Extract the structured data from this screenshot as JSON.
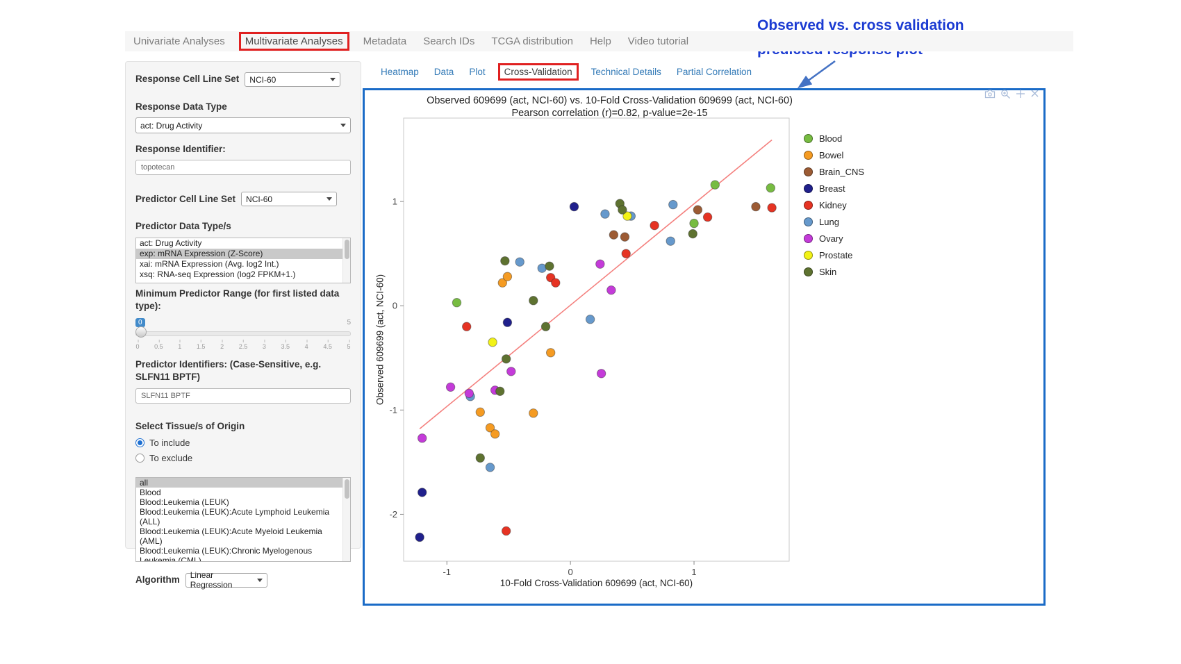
{
  "annotation": {
    "line1": "Observed vs. cross validation",
    "line2": "predicted response plot"
  },
  "nav": {
    "tabs": [
      {
        "label": "Univariate Analyses"
      },
      {
        "label": "Multivariate Analyses",
        "active": true,
        "boxed": true
      },
      {
        "label": "Metadata"
      },
      {
        "label": "Search IDs"
      },
      {
        "label": "TCGA distribution"
      },
      {
        "label": "Help"
      },
      {
        "label": "Video tutorial"
      }
    ]
  },
  "subtabs": [
    {
      "label": "Heatmap"
    },
    {
      "label": "Data"
    },
    {
      "label": "Plot"
    },
    {
      "label": "Cross-Validation",
      "active": true,
      "boxed": true
    },
    {
      "label": "Technical Details"
    },
    {
      "label": "Partial Correlation"
    }
  ],
  "sidebar": {
    "response_cell_line_set": {
      "label": "Response Cell Line Set",
      "value": "NCI-60"
    },
    "response_data_type": {
      "label": "Response Data Type",
      "value": "act: Drug Activity"
    },
    "response_identifier": {
      "label": "Response Identifier:",
      "value": "topotecan"
    },
    "predictor_cell_line_set": {
      "label": "Predictor Cell Line Set",
      "value": "NCI-60"
    },
    "predictor_data_types": {
      "label": "Predictor Data Type/s",
      "options": [
        "act: Drug Activity",
        "exp: mRNA Expression (Z-Score)",
        "xai: mRNA Expression (Avg. log2 Int.)",
        "xsq: RNA-seq Expression (log2 FPKM+1.)"
      ],
      "selected_index": 1
    },
    "min_predictor_range": {
      "label": "Minimum Predictor Range (for first listed data type):",
      "value": "0",
      "max_label": "5",
      "ticks": [
        "0",
        "0.5",
        "1",
        "1.5",
        "2",
        "2.5",
        "3",
        "3.5",
        "4",
        "4.5",
        "5"
      ]
    },
    "predictor_identifiers": {
      "label": "Predictor Identifiers: (Case-Sensitive, e.g. SLFN11 BPTF)",
      "value": "SLFN11 BPTF"
    },
    "tissue_origin": {
      "label": "Select Tissue/s of Origin",
      "radio_include": "To include",
      "radio_exclude": "To exclude",
      "selected": "include",
      "options": [
        "all",
        "Blood",
        "Blood:Leukemia (LEUK)",
        "Blood:Leukemia (LEUK):Acute Lymphoid Leukemia (ALL)",
        "Blood:Leukemia (LEUK):Acute Myeloid Leukemia (AML)",
        "Blood:Leukemia (LEUK):Chronic Myelogenous Leukemia (CML)"
      ],
      "selected_option": "all"
    },
    "algorithm": {
      "label": "Algorithm",
      "value": "Linear Regression"
    }
  },
  "colors": {
    "panel_border_blue": "#1A6BC7",
    "highlight_red": "#E02020",
    "link_blue": "#337AB7",
    "annotation_blue": "#1B3BD2",
    "arrow_blue": "#4472C4"
  },
  "chart_data": {
    "type": "scatter",
    "title": "Observed 609699 (act, NCI-60) vs. 10-Fold Cross-Validation 609699 (act, NCI-60)",
    "subtitle": "Pearson correlation (r)=0.82, p-value=2e-15",
    "xlabel": "10-Fold Cross-Validation 609699 (act, NCI-60)",
    "ylabel": "Observed 609699 (act, NCI-60)",
    "xlim": [
      -1.35,
      1.77
    ],
    "ylim": [
      -2.45,
      1.8
    ],
    "xticks": [
      -1,
      0,
      1
    ],
    "yticks": [
      -2,
      -1,
      0,
      1
    ],
    "grid": false,
    "legend_position": "right",
    "regression_line": {
      "x1": -1.22,
      "y1": -1.18,
      "x2": 1.63,
      "y2": 1.59,
      "color": "#F4807E"
    },
    "series": [
      {
        "name": "Blood",
        "color": "#77BC41",
        "points": [
          [
            -0.92,
            0.03
          ],
          [
            1.0,
            0.79
          ],
          [
            1.17,
            1.16
          ],
          [
            1.62,
            1.13
          ]
        ]
      },
      {
        "name": "Bowel",
        "color": "#F59B22",
        "points": [
          [
            -0.55,
            0.22
          ],
          [
            -0.51,
            0.28
          ],
          [
            -0.16,
            -0.45
          ],
          [
            -0.73,
            -1.02
          ],
          [
            -0.3,
            -1.03
          ],
          [
            -0.65,
            -1.17
          ],
          [
            -0.61,
            -1.23
          ]
        ]
      },
      {
        "name": "Brain_CNS",
        "color": "#9C5B34",
        "points": [
          [
            0.35,
            0.68
          ],
          [
            0.44,
            0.66
          ],
          [
            1.03,
            0.92
          ],
          [
            1.5,
            0.95
          ]
        ]
      },
      {
        "name": "Breast",
        "color": "#20208C",
        "points": [
          [
            0.03,
            0.95
          ],
          [
            -0.51,
            -0.16
          ],
          [
            -1.2,
            -1.79
          ],
          [
            -1.22,
            -2.22
          ]
        ]
      },
      {
        "name": "Kidney",
        "color": "#E63323",
        "points": [
          [
            -0.84,
            -0.2
          ],
          [
            -0.16,
            0.27
          ],
          [
            -0.12,
            0.22
          ],
          [
            0.45,
            0.5
          ],
          [
            0.68,
            0.77
          ],
          [
            1.11,
            0.85
          ],
          [
            1.63,
            0.94
          ],
          [
            -0.52,
            -2.16
          ]
        ]
      },
      {
        "name": "Lung",
        "color": "#6699CC",
        "points": [
          [
            -0.41,
            0.42
          ],
          [
            -0.23,
            0.36
          ],
          [
            0.28,
            0.88
          ],
          [
            0.49,
            0.86
          ],
          [
            0.83,
            0.97
          ],
          [
            0.81,
            0.62
          ],
          [
            0.16,
            -0.13
          ],
          [
            -0.81,
            -0.87
          ],
          [
            -0.65,
            -1.55
          ]
        ]
      },
      {
        "name": "Ovary",
        "color": "#C43BD9",
        "points": [
          [
            -0.97,
            -0.78
          ],
          [
            -0.82,
            -0.84
          ],
          [
            -0.61,
            -0.81
          ],
          [
            -0.48,
            -0.63
          ],
          [
            0.25,
            -0.65
          ],
          [
            0.24,
            0.4
          ],
          [
            0.33,
            0.15
          ],
          [
            -1.2,
            -1.27
          ]
        ]
      },
      {
        "name": "Prostate",
        "color": "#F2F216",
        "points": [
          [
            -0.63,
            -0.35
          ],
          [
            0.46,
            0.86
          ]
        ]
      },
      {
        "name": "Skin",
        "color": "#5E7230",
        "points": [
          [
            -0.53,
            0.43
          ],
          [
            -0.3,
            0.05
          ],
          [
            -0.17,
            0.38
          ],
          [
            -0.2,
            -0.2
          ],
          [
            -0.52,
            -0.51
          ],
          [
            -0.57,
            -0.82
          ],
          [
            -0.73,
            -1.46
          ],
          [
            0.4,
            0.98
          ],
          [
            0.42,
            0.92
          ],
          [
            0.99,
            0.69
          ]
        ]
      }
    ]
  }
}
